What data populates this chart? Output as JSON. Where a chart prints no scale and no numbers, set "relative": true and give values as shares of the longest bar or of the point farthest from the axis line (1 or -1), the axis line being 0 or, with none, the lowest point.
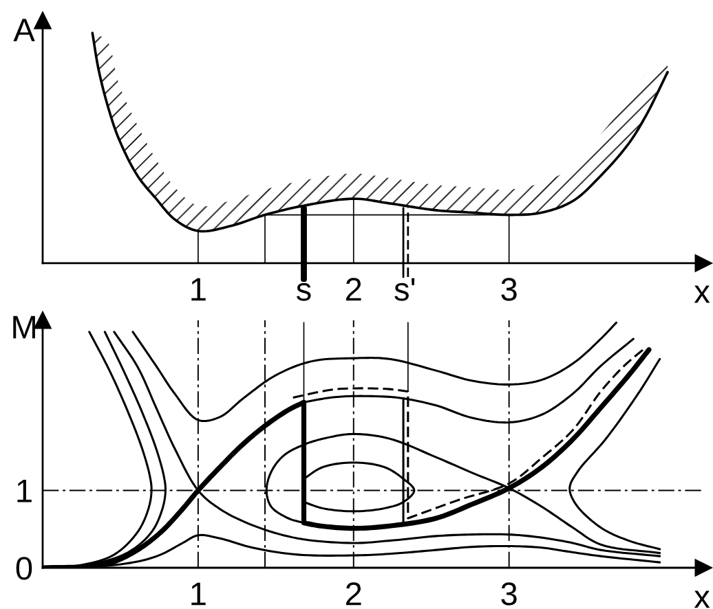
{
  "chart_data": [
    {
      "type": "line",
      "relative": true,
      "xlabel": "x",
      "ylabel": "A",
      "xlim": [
        0,
        4.25
      ],
      "xticks": [
        1,
        {
          "value": 1.68,
          "label": "s"
        },
        2,
        {
          "value": 2.33,
          "label": "s'"
        },
        3
      ],
      "series": [
        {
          "color": "#000000",
          "x": [
            0.32,
            0.36,
            0.42,
            0.49,
            0.61,
            0.73,
            0.85,
            1,
            1.2,
            1.43,
            1.68,
            2,
            2.23,
            2.53,
            2.76,
            3,
            3.21,
            3.41,
            3.59,
            3.77,
            3.88,
            4.02
          ],
          "values": [
            1,
            0.84,
            0.68,
            0.54,
            0.38,
            0.28,
            0.19,
            0.14,
            0.16,
            0.21,
            0.25,
            0.28,
            0.26,
            0.23,
            0.22,
            0.21,
            0.22,
            0.27,
            0.38,
            0.52,
            0.64,
            0.83
          ],
          "lower": [
            1,
            0.84,
            0.68,
            0.54,
            0.38,
            0.28,
            0.19,
            0.14,
            0.16,
            0.21,
            0.25,
            0.28,
            0.26,
            0.23,
            0.22,
            0.21,
            0.22,
            0.27,
            0.38,
            0.52,
            0.64,
            0.83
          ],
          "upper": [
            1,
            0.99,
            0.96,
            0.78,
            0.6,
            0.45,
            0.33,
            0.25,
            0.27,
            0.32,
            0.36,
            0.39,
            0.37,
            0.34,
            0.33,
            0.32,
            0.35,
            0.42,
            0.56,
            0.71,
            0.82,
            0.86
          ]
        },
        {
          "color": "#000000",
          "x": [
            1,
            1
          ],
          "values": [
            0,
            0.14
          ]
        },
        {
          "color": "#000000",
          "x": [
            1.43,
            1.43,
            3,
            3
          ],
          "values": [
            0,
            0.21,
            0.21,
            0
          ]
        },
        {
          "color": "#000000",
          "x": [
            2,
            2
          ],
          "values": [
            0,
            0.28
          ]
        },
        {
          "color": "#000000",
          "x": [
            1.68,
            1.68
          ],
          "values": [
            -0.07,
            0.24
          ]
        },
        {
          "color": "#000000",
          "x": [
            2.32,
            2.32
          ],
          "values": [
            -0.06,
            0.24
          ]
        },
        {
          "color": "#000000",
          "x": [
            2.35,
            2.35
          ],
          "values": [
            -0.06,
            0.24
          ],
          "line_style": "dashed"
        }
      ]
    },
    {
      "type": "line",
      "xlabel": "x",
      "ylabel": "M",
      "xlim": [
        0,
        4.25
      ],
      "xticks": [
        1,
        2,
        3
      ],
      "ylim": [
        0,
        3.2
      ],
      "yticks": [
        0,
        1
      ],
      "ref_lines": [
        {
          "axis": "x",
          "value": 1,
          "line_style": "dashdot",
          "color": "#000000"
        },
        {
          "axis": "x",
          "value": 1.43,
          "line_style": "dashdot",
          "color": "#000000"
        },
        {
          "axis": "x",
          "value": 2,
          "line_style": "dashdot",
          "color": "#000000"
        },
        {
          "axis": "x",
          "value": 3,
          "line_style": "dashdot",
          "color": "#000000"
        },
        {
          "axis": "y",
          "value": 1,
          "line_style": "dashdot",
          "color": "#000000"
        }
      ],
      "series": [
        {
          "color": "#000000",
          "x": [
            0,
            0.32,
            0.46,
            0.61,
            0.76,
            0.9,
            1,
            1.14,
            1.29,
            1.44,
            1.58,
            1.68,
            1.68,
            1.79,
            2,
            2.23,
            2.53,
            2.76,
            3,
            3.21,
            3.41,
            3.59,
            3.77,
            3.9
          ],
          "values": [
            0,
            0.02,
            0.08,
            0.23,
            0.46,
            0.76,
            1,
            1.3,
            1.6,
            1.85,
            2.04,
            2.14,
            0.58,
            0.54,
            0.51,
            0.54,
            0.64,
            0.82,
            1.03,
            1.3,
            1.66,
            2.07,
            2.49,
            2.82
          ]
        },
        {
          "color": "#000000",
          "x": [
            1.68,
            1.85,
            2,
            2.23,
            2.32,
            2.53,
            2.76,
            3,
            3.21,
            3.41,
            3.59,
            3.8
          ],
          "values": [
            2.14,
            2.2,
            2.22,
            2.21,
            2.19,
            2.1,
            1.94,
            1.88,
            1.98,
            2.25,
            2.61,
            2.96
          ]
        },
        {
          "color": "#000000",
          "x": [
            2.32,
            2.32
          ],
          "values": [
            2.19,
            0.55
          ]
        },
        {
          "color": "#000000",
          "x": [
            1.61,
            1.85,
            2,
            2.23,
            2.35,
            2.35,
            2.68,
            3,
            3.21,
            3.41,
            3.59,
            3.74,
            3.88
          ],
          "values": [
            2.2,
            2.3,
            2.32,
            2.31,
            2.28,
            0.64,
            0.88,
            1.09,
            1.42,
            1.78,
            2.28,
            2.61,
            2.85
          ],
          "line_style": "dashed"
        },
        {
          "color": "#000000",
          "x": [
            0.58,
            0.73,
            0.85,
            1,
            1.14,
            1.29,
            1.5,
            1.73,
            2,
            2.23,
            2.53,
            2.76,
            3,
            3.21,
            3.41,
            3.59,
            3.69
          ],
          "values": [
            3.05,
            2.61,
            2.25,
            1.91,
            1.95,
            2.19,
            2.49,
            2.67,
            2.71,
            2.7,
            2.55,
            2.42,
            2.37,
            2.43,
            2.64,
            2.96,
            3.17
          ]
        },
        {
          "color": "#000000",
          "x": [
            0.3,
            0.43,
            0.55,
            0.64,
            0.69,
            0.7,
            0.68,
            0.61,
            0.46,
            0.26,
            0
          ],
          "values": [
            3.05,
            2.55,
            2.01,
            1.54,
            1.18,
            1,
            0.76,
            0.46,
            0.17,
            0.04,
            0
          ]
        },
        {
          "color": "#000000",
          "x": [
            0.4,
            0.52,
            0.64,
            0.73,
            0.78,
            0.79,
            0.77,
            0.7,
            0.55,
            0.32,
            0
          ],
          "values": [
            3.05,
            2.55,
            2.01,
            1.54,
            1.18,
            1,
            0.76,
            0.46,
            0.2,
            0.05,
            0
          ]
        },
        {
          "color": "#000000",
          "x": [
            0.46,
            0.61,
            0.73,
            0.85,
            1,
            1.14,
            1.35,
            1.64,
            2,
            2.23,
            2.53,
            2.76,
            3,
            3.21,
            3.41,
            3.59,
            3.97
          ],
          "values": [
            3.05,
            2.6,
            2.07,
            1.54,
            1,
            0.76,
            0.55,
            0.38,
            0.32,
            0.35,
            0.41,
            0.43,
            0.43,
            0.39,
            0.32,
            0.23,
            0.15
          ]
        },
        {
          "color": "#000000",
          "x": [
            0,
            0.32,
            0.61,
            0.76,
            0.9,
            1,
            1.14,
            1.35,
            1.64,
            2,
            2.23,
            2.53,
            2.76,
            3,
            3.21,
            3.41,
            3.59,
            3.97
          ],
          "values": [
            0,
            0.01,
            0.08,
            0.17,
            0.32,
            0.42,
            0.38,
            0.26,
            0.17,
            0.16,
            0.18,
            0.23,
            0.27,
            0.28,
            0.26,
            0.2,
            0.15,
            0.07
          ]
        },
        {
          "color": "#000000",
          "x": [
            1.68,
            1.58,
            1.47,
            1.44,
            1.47,
            1.55,
            1.69,
            1.85,
            2,
            2.23,
            2.53,
            2.76,
            3,
            3.21,
            3.41,
            3.59,
            3.97
          ],
          "values": [
            0.58,
            0.64,
            0.79,
            1,
            1.24,
            1.45,
            1.6,
            1.69,
            1.73,
            1.67,
            1.43,
            1.23,
            1.03,
            0.79,
            0.52,
            0.3,
            0.19
          ]
        },
        {
          "color": "#000000",
          "x": [
            1.68,
            1.8,
            2,
            2.2,
            2.32,
            2.39,
            2.32,
            2.2,
            2,
            1.8,
            1.68
          ],
          "values": [
            1.15,
            1.3,
            1.36,
            1.3,
            1.15,
            1,
            0.85,
            0.77,
            0.73,
            0.77,
            0.85
          ]
        },
        {
          "color": "#000000",
          "x": [
            3.97,
            3.83,
            3.62,
            3.44,
            3.39,
            3.43,
            3.59,
            3.77,
            3.97
          ],
          "values": [
            2.7,
            2.25,
            1.66,
            1.24,
            1.03,
            0.82,
            0.52,
            0.35,
            0.24
          ]
        },
        {
          "color": "#000000",
          "x": [
            1.68,
            1.68
          ],
          "values": [
            3.17,
            2.14
          ]
        },
        {
          "color": "#000000",
          "x": [
            2.35,
            2.35
          ],
          "values": [
            3.17,
            2.28
          ]
        }
      ]
    }
  ]
}
